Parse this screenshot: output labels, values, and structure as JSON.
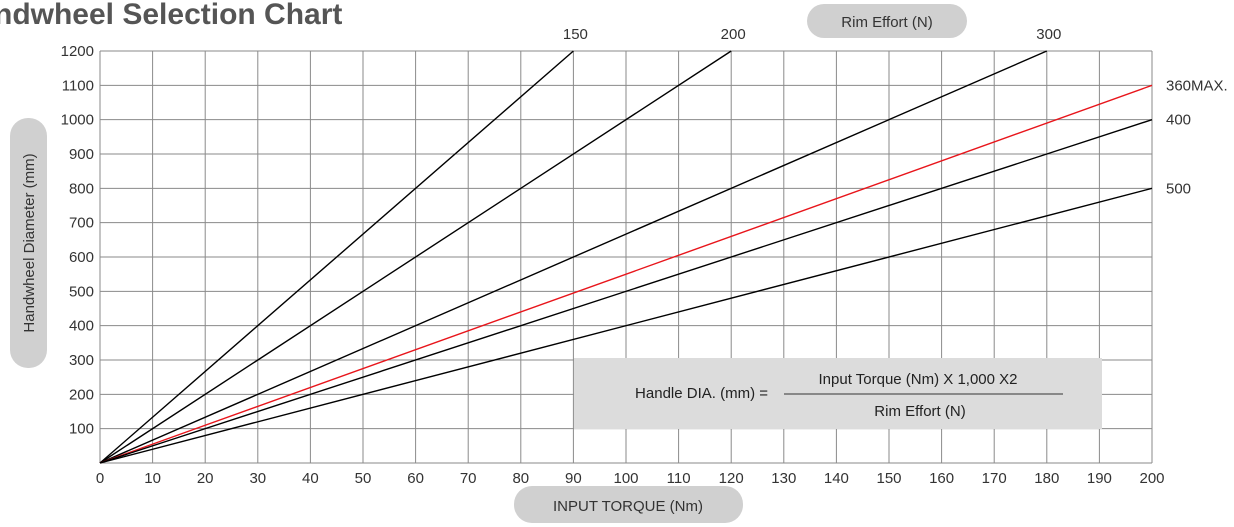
{
  "chart_data": {
    "type": "line",
    "title": "ndwheel Selection Chart",
    "xlabel": "INPUT TORQUE (Nm)",
    "ylabel": "Handwheel Diameter (mm)",
    "series_group_label": "Rim Effort (N)",
    "xlim": [
      0,
      200
    ],
    "ylim": [
      0,
      1200
    ],
    "x_ticks": [
      0,
      10,
      20,
      30,
      40,
      50,
      60,
      70,
      80,
      90,
      100,
      110,
      120,
      130,
      140,
      150,
      160,
      170,
      180,
      190,
      200
    ],
    "y_ticks": [
      100,
      200,
      300,
      400,
      500,
      600,
      700,
      800,
      900,
      1000,
      1100,
      1200
    ],
    "grid": true,
    "series": [
      {
        "name": "150",
        "x": [
          0,
          90
        ],
        "y": [
          0,
          1200
        ],
        "color": "#000000"
      },
      {
        "name": "200",
        "x": [
          0,
          120
        ],
        "y": [
          0,
          1200
        ],
        "color": "#000000"
      },
      {
        "name": "300",
        "x": [
          0,
          180
        ],
        "y": [
          0,
          1200
        ],
        "color": "#000000"
      },
      {
        "name": "360MAX.",
        "x": [
          0,
          200
        ],
        "y": [
          0,
          1100
        ],
        "color": "#e8151b"
      },
      {
        "name": "400",
        "x": [
          0,
          200
        ],
        "y": [
          0,
          1000
        ],
        "color": "#000000"
      },
      {
        "name": "500",
        "x": [
          0,
          200
        ],
        "y": [
          0,
          800
        ],
        "color": "#000000"
      }
    ],
    "formula": {
      "lhs": "Handle DIA. (mm) =",
      "numerator": "Input Torque (Nm) X 1,000 X2",
      "denominator": "Rim Effort (N)"
    }
  }
}
